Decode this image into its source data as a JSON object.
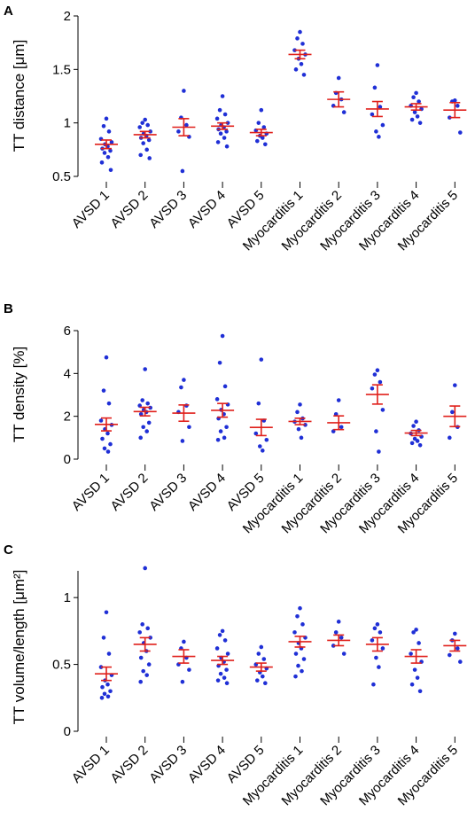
{
  "colors": {
    "points": "#1f2fd6",
    "mean_sem": "#e0201b",
    "axis": "#000000"
  },
  "chart_data": [
    {
      "type": "scatter",
      "panel": "A",
      "ylabel": "TT distance [μm]",
      "ylim": [
        0.5,
        2
      ],
      "yticks": [
        0.5,
        1,
        1.5,
        2
      ],
      "ytick_labels": [
        "0.5",
        "1",
        "1.5",
        "2"
      ],
      "categories": [
        "AVSD 1",
        "AVSD 2",
        "AVSD 3",
        "AVSD 4",
        "AVSD 5",
        "Myocarditis 1",
        "Myocarditis 2",
        "Myocarditis 3",
        "Myocarditis 4",
        "Myocarditis 5"
      ],
      "mean": [
        0.8,
        0.89,
        0.96,
        0.97,
        0.91,
        1.64,
        1.22,
        1.13,
        1.15,
        1.12
      ],
      "sem": [
        0.04,
        0.03,
        0.08,
        0.03,
        0.03,
        0.04,
        0.07,
        0.07,
        0.03,
        0.07
      ],
      "points": [
        [
          1.04,
          0.97,
          0.92,
          0.85,
          0.82,
          0.8,
          0.78,
          0.76,
          0.74,
          0.72,
          0.68,
          0.63,
          0.56
        ],
        [
          1.03,
          1.0,
          0.98,
          0.96,
          0.92,
          0.9,
          0.88,
          0.86,
          0.84,
          0.81,
          0.75,
          0.7,
          0.67
        ],
        [
          1.3,
          1.05,
          0.98,
          0.92,
          0.87,
          0.55
        ],
        [
          1.25,
          1.12,
          1.08,
          1.04,
          1.0,
          0.98,
          0.96,
          0.94,
          0.92,
          0.9,
          0.86,
          0.82,
          0.78
        ],
        [
          1.12,
          1.0,
          0.96,
          0.93,
          0.9,
          0.88,
          0.86,
          0.83,
          0.8
        ],
        [
          1.85,
          1.79,
          1.74,
          1.68,
          1.64,
          1.6,
          1.55,
          1.5,
          1.45
        ],
        [
          1.42,
          1.28,
          1.22,
          1.16,
          1.1
        ],
        [
          1.54,
          1.33,
          1.15,
          1.08,
          0.98,
          0.92,
          0.87
        ],
        [
          1.28,
          1.24,
          1.2,
          1.16,
          1.13,
          1.1,
          1.06,
          1.03,
          1.0
        ],
        [
          1.21,
          1.2,
          1.16,
          1.05,
          0.91
        ]
      ]
    },
    {
      "type": "scatter",
      "panel": "B",
      "ylabel": "TT density [%]",
      "ylim": [
        0,
        6
      ],
      "yticks": [
        0,
        2,
        4,
        6
      ],
      "ytick_labels": [
        "0",
        "2",
        "4",
        "6"
      ],
      "categories": [
        "AVSD 1",
        "AVSD 2",
        "AVSD 3",
        "AVSD 4",
        "AVSD 5",
        "Myocarditis 1",
        "Myocarditis 2",
        "Myocarditis 3",
        "Myocarditis 4",
        "Myocarditis 5"
      ],
      "mean": [
        1.62,
        2.22,
        2.15,
        2.28,
        1.48,
        1.76,
        1.7,
        3.02,
        1.22,
        2.0
      ],
      "sem": [
        0.3,
        0.2,
        0.38,
        0.32,
        0.38,
        0.15,
        0.32,
        0.45,
        0.12,
        0.48
      ],
      "points": [
        [
          4.75,
          3.2,
          2.6,
          1.8,
          1.6,
          1.4,
          1.2,
          0.95,
          0.7,
          0.5,
          0.35
        ],
        [
          4.2,
          2.75,
          2.6,
          2.5,
          2.4,
          2.3,
          2.2,
          2.1,
          1.7,
          1.5,
          1.3,
          1.0
        ],
        [
          3.7,
          3.35,
          2.5,
          2.2,
          1.5,
          0.85
        ],
        [
          5.75,
          4.5,
          3.4,
          2.8,
          2.55,
          2.3,
          2.1,
          1.9,
          1.5,
          1.3,
          1.0,
          0.9
        ],
        [
          4.65,
          2.6,
          1.8,
          1.2,
          0.9,
          0.6,
          0.4
        ],
        [
          2.55,
          2.2,
          1.9,
          1.75,
          1.6,
          1.4,
          1.0
        ],
        [
          2.75,
          2.1,
          1.5,
          1.3
        ],
        [
          4.15,
          3.95,
          3.6,
          3.3,
          2.3,
          1.3,
          0.35
        ],
        [
          1.75,
          1.55,
          1.35,
          1.2,
          1.05,
          0.95,
          0.85,
          0.75,
          0.65
        ],
        [
          3.45,
          2.2,
          1.5,
          1.0
        ]
      ]
    },
    {
      "type": "scatter",
      "panel": "C",
      "ylabel": "TT volume/length [μm²]",
      "ylim": [
        0,
        1.2
      ],
      "yticks": [
        0,
        0.5,
        1
      ],
      "ytick_labels": [
        "0",
        "0.5",
        "1"
      ],
      "categories": [
        "AVSD 1",
        "AVSD 2",
        "AVSD 3",
        "AVSD 4",
        "AVSD 5",
        "Myocarditis 1",
        "Myocarditis 2",
        "Myocarditis 3",
        "Myocarditis 4",
        "Myocarditis 5"
      ],
      "mean": [
        0.43,
        0.65,
        0.56,
        0.53,
        0.48,
        0.67,
        0.68,
        0.65,
        0.56,
        0.64
      ],
      "sem": [
        0.05,
        0.05,
        0.05,
        0.03,
        0.03,
        0.04,
        0.04,
        0.05,
        0.05,
        0.04
      ],
      "points": [
        [
          0.89,
          0.7,
          0.58,
          0.48,
          0.42,
          0.38,
          0.35,
          0.33,
          0.3,
          0.28,
          0.26,
          0.25
        ],
        [
          1.22,
          0.8,
          0.77,
          0.74,
          0.7,
          0.66,
          0.6,
          0.55,
          0.5,
          0.45,
          0.42,
          0.37
        ],
        [
          0.67,
          0.62,
          0.55,
          0.5,
          0.46,
          0.37
        ],
        [
          0.75,
          0.72,
          0.68,
          0.62,
          0.58,
          0.55,
          0.52,
          0.49,
          0.46,
          0.43,
          0.4,
          0.38,
          0.36
        ],
        [
          0.63,
          0.58,
          0.54,
          0.5,
          0.47,
          0.44,
          0.41,
          0.38,
          0.36
        ],
        [
          0.92,
          0.86,
          0.8,
          0.74,
          0.7,
          0.66,
          0.62,
          0.58,
          0.54,
          0.49,
          0.45,
          0.41
        ],
        [
          0.82,
          0.74,
          0.7,
          0.64,
          0.58
        ],
        [
          0.8,
          0.77,
          0.74,
          0.68,
          0.62,
          0.55,
          0.48,
          0.35
        ],
        [
          0.76,
          0.74,
          0.66,
          0.58,
          0.52,
          0.46,
          0.4,
          0.35,
          0.3
        ],
        [
          0.73,
          0.68,
          0.62,
          0.57,
          0.52
        ]
      ]
    }
  ]
}
